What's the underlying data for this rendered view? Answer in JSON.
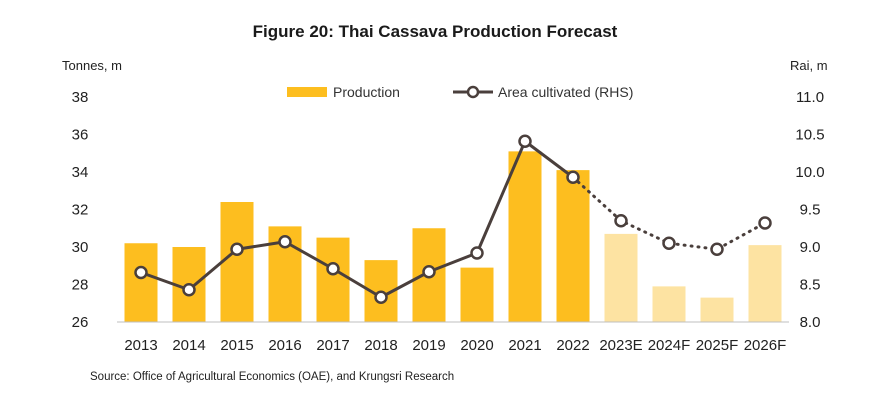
{
  "title": "Figure 20: Thai Cassava Production Forecast",
  "source": "Source: Office of Agricultural Economics (OAE), and Krungsri Research",
  "chart_data": {
    "type": "bar",
    "title": "Figure 20: Thai Cassava Production Forecast",
    "categories": [
      "2013",
      "2014",
      "2015",
      "2016",
      "2017",
      "2018",
      "2019",
      "2020",
      "2021",
      "2022",
      "2023E",
      "2024F",
      "2025F",
      "2026F"
    ],
    "forecast_from_index": 10,
    "y_left": {
      "label": "Tonnes, m",
      "lim": [
        26,
        38
      ],
      "ticks": [
        "26",
        "28",
        "30",
        "32",
        "34",
        "36",
        "38"
      ]
    },
    "y_right": {
      "label": "Rai, m",
      "lim": [
        8.0,
        11.0
      ],
      "ticks": [
        "8.0",
        "8.5",
        "9.0",
        "9.5",
        "10.0",
        "10.5",
        "11.0"
      ]
    },
    "legend": {
      "position": "top-center"
    },
    "series": [
      {
        "name": "Production",
        "type": "bar",
        "axis": "left",
        "values": [
          30.2,
          30.0,
          32.4,
          31.1,
          30.5,
          29.3,
          31.0,
          28.9,
          35.1,
          34.1,
          30.7,
          27.9,
          27.3,
          30.1
        ],
        "color": "#FDBE1F",
        "forecast_color": "#FDE3A2"
      },
      {
        "name": "Area cultivated (RHS)",
        "type": "line",
        "axis": "right",
        "values": [
          8.66,
          8.43,
          8.97,
          9.07,
          8.71,
          8.33,
          8.67,
          8.92,
          10.41,
          9.93,
          9.35,
          9.05,
          8.97,
          9.32
        ],
        "color": "#4A3F3C",
        "dotted_from_index": 9
      }
    ],
    "grid": false
  }
}
